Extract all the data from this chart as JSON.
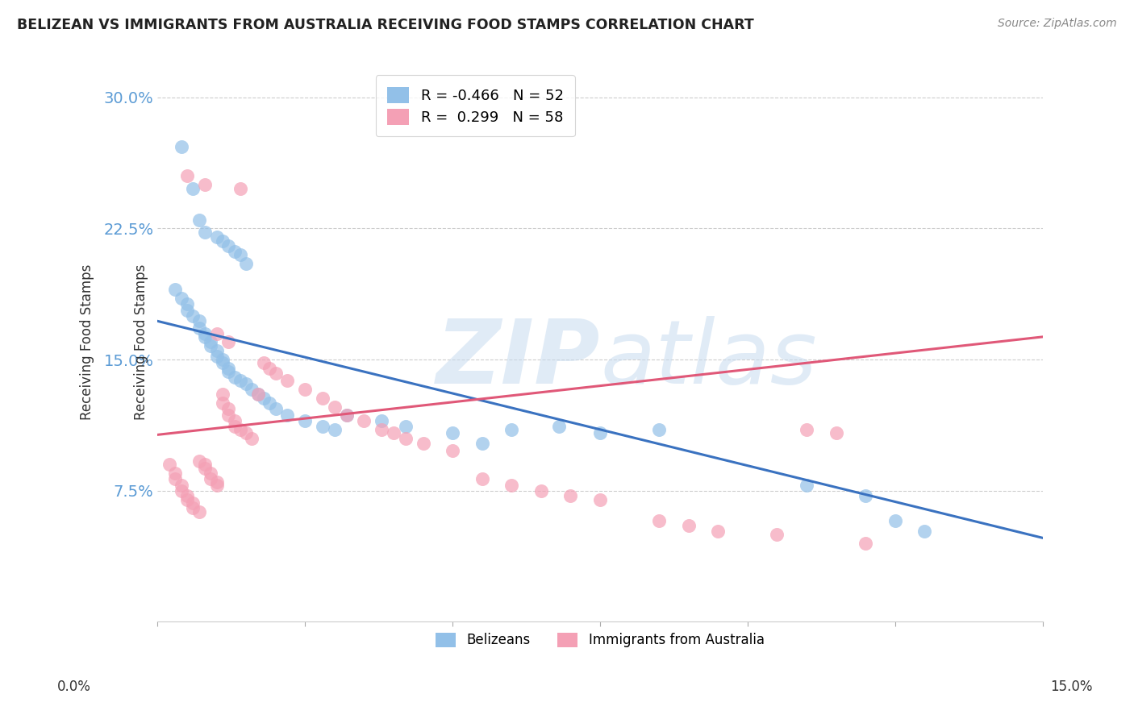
{
  "title": "BELIZEAN VS IMMIGRANTS FROM AUSTRALIA RECEIVING FOOD STAMPS CORRELATION CHART",
  "source": "Source: ZipAtlas.com",
  "ylabel": "Receiving Food Stamps",
  "ytick_labels": [
    "7.5%",
    "15.0%",
    "22.5%",
    "30.0%"
  ],
  "ytick_values": [
    0.075,
    0.15,
    0.225,
    0.3
  ],
  "xmin": 0.0,
  "xmax": 0.15,
  "ymin": 0.0,
  "ymax": 0.32,
  "legend_blue_r": "-0.466",
  "legend_blue_n": "52",
  "legend_pink_r": " 0.299",
  "legend_pink_n": "58",
  "blue_color": "#92C0E8",
  "pink_color": "#F4A0B5",
  "line_blue_color": "#3A72C0",
  "line_pink_color": "#E05878",
  "blue_line_y0": 0.172,
  "blue_line_y1": 0.048,
  "pink_line_y0": 0.107,
  "pink_line_y1": 0.163,
  "blue_points_x": [
    0.004,
    0.006,
    0.007,
    0.008,
    0.01,
    0.011,
    0.012,
    0.013,
    0.014,
    0.015,
    0.003,
    0.004,
    0.005,
    0.005,
    0.006,
    0.007,
    0.007,
    0.008,
    0.008,
    0.009,
    0.009,
    0.01,
    0.01,
    0.011,
    0.011,
    0.012,
    0.012,
    0.013,
    0.014,
    0.015,
    0.016,
    0.017,
    0.018,
    0.019,
    0.02,
    0.022,
    0.025,
    0.028,
    0.03,
    0.032,
    0.038,
    0.042,
    0.05,
    0.055,
    0.06,
    0.068,
    0.075,
    0.085,
    0.11,
    0.12,
    0.125,
    0.13
  ],
  "blue_points_y": [
    0.272,
    0.248,
    0.23,
    0.223,
    0.22,
    0.218,
    0.215,
    0.212,
    0.21,
    0.205,
    0.19,
    0.185,
    0.182,
    0.178,
    0.175,
    0.172,
    0.168,
    0.165,
    0.163,
    0.16,
    0.158,
    0.155,
    0.152,
    0.15,
    0.148,
    0.145,
    0.143,
    0.14,
    0.138,
    0.136,
    0.133,
    0.13,
    0.128,
    0.125,
    0.122,
    0.118,
    0.115,
    0.112,
    0.11,
    0.118,
    0.115,
    0.112,
    0.108,
    0.102,
    0.11,
    0.112,
    0.108,
    0.11,
    0.078,
    0.072,
    0.058,
    0.052
  ],
  "pink_points_x": [
    0.002,
    0.003,
    0.003,
    0.004,
    0.004,
    0.005,
    0.005,
    0.006,
    0.006,
    0.007,
    0.007,
    0.008,
    0.008,
    0.009,
    0.009,
    0.01,
    0.01,
    0.011,
    0.011,
    0.012,
    0.012,
    0.013,
    0.013,
    0.014,
    0.015,
    0.016,
    0.017,
    0.018,
    0.019,
    0.02,
    0.022,
    0.025,
    0.028,
    0.03,
    0.032,
    0.035,
    0.038,
    0.04,
    0.042,
    0.045,
    0.05,
    0.055,
    0.06,
    0.065,
    0.07,
    0.075,
    0.085,
    0.09,
    0.095,
    0.105,
    0.11,
    0.115,
    0.12,
    0.005,
    0.008,
    0.01,
    0.012,
    0.014
  ],
  "pink_points_y": [
    0.09,
    0.085,
    0.082,
    0.078,
    0.075,
    0.072,
    0.07,
    0.068,
    0.065,
    0.063,
    0.092,
    0.09,
    0.088,
    0.085,
    0.082,
    0.08,
    0.078,
    0.13,
    0.125,
    0.122,
    0.118,
    0.115,
    0.112,
    0.11,
    0.108,
    0.105,
    0.13,
    0.148,
    0.145,
    0.142,
    0.138,
    0.133,
    0.128,
    0.123,
    0.118,
    0.115,
    0.11,
    0.108,
    0.105,
    0.102,
    0.098,
    0.082,
    0.078,
    0.075,
    0.072,
    0.07,
    0.058,
    0.055,
    0.052,
    0.05,
    0.11,
    0.108,
    0.045,
    0.255,
    0.25,
    0.165,
    0.16,
    0.248
  ]
}
